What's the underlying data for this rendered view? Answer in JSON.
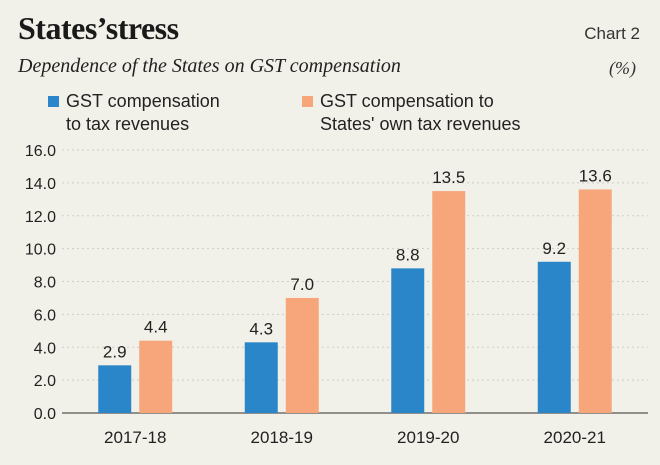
{
  "header": {
    "title": "States’stress",
    "chart_label": "Chart 2",
    "subtitle": "Dependence of the States on GST compensation",
    "unit": "(%)"
  },
  "colors": {
    "series1": "#2a86c8",
    "series2": "#f7a57b",
    "background": "#f2f1e9",
    "grid": "#cfcdc4"
  },
  "chart_data": {
    "type": "bar",
    "title": "States’stress",
    "subtitle": "Dependence of the States on GST compensation",
    "ylabel": "(%)",
    "categories": [
      "2017-18",
      "2018-19",
      "2019-20",
      "2020-21"
    ],
    "ylim": [
      0,
      16
    ],
    "yticks": [
      "0.0",
      "2.0",
      "4.0",
      "6.0",
      "8.0",
      "10.0",
      "12.0",
      "14.0",
      "16.0"
    ],
    "grid": "horizontal dotted",
    "legend": "top",
    "series": [
      {
        "name": "GST compensation to tax revenues",
        "name_lines": [
          "GST compensation",
          "to tax revenues"
        ],
        "values": [
          2.9,
          4.3,
          8.8,
          9.2
        ],
        "labels": [
          "2.9",
          "4.3",
          "8.8",
          "9.2"
        ]
      },
      {
        "name": "GST compensation to States' own tax revenues",
        "name_lines": [
          "GST compensation to",
          "States' own tax revenues"
        ],
        "values": [
          4.4,
          7.0,
          13.5,
          13.6
        ],
        "labels": [
          "4.4",
          "7.0",
          "13.5",
          "13.6"
        ]
      }
    ]
  }
}
